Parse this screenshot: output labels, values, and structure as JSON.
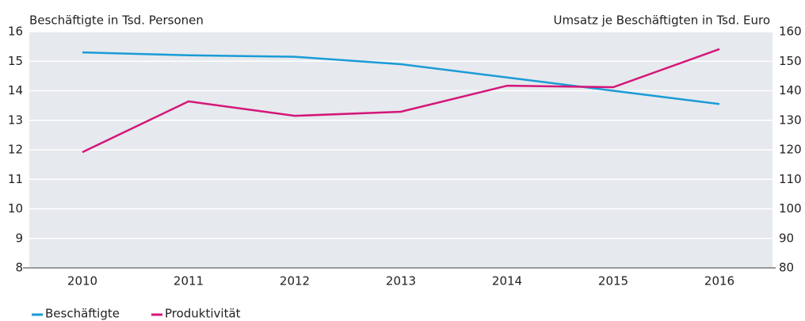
{
  "chart_data": {
    "type": "line",
    "y_axis_label": "Beschäftigte in Tsd. Personen",
    "y2_axis_label": "Umsatz je Beschäftigten in Tsd. Euro",
    "categories": [
      "2010",
      "2011",
      "2012",
      "2013",
      "2014",
      "2015",
      "2016"
    ],
    "series": [
      {
        "name": "Beschäftigte",
        "color": "#1a9bd7",
        "values": [
          15.3,
          15.2,
          15.15,
          14.9,
          14.45,
          14.0,
          13.55
        ]
      },
      {
        "name": "Produktivität",
        "color": "#d4167a",
        "axis": "y2",
        "values": [
          119.2,
          136.4,
          131.5,
          132.9,
          141.7,
          141.2,
          154.1
        ]
      }
    ],
    "ylim": [
      8,
      16
    ],
    "yticks": [
      8,
      9,
      10,
      11,
      12,
      13,
      14,
      15,
      16
    ],
    "y2lim": [
      80,
      160
    ],
    "y2ticks": [
      80,
      90,
      100,
      110,
      120,
      130,
      140,
      150,
      160
    ],
    "grid": true
  }
}
